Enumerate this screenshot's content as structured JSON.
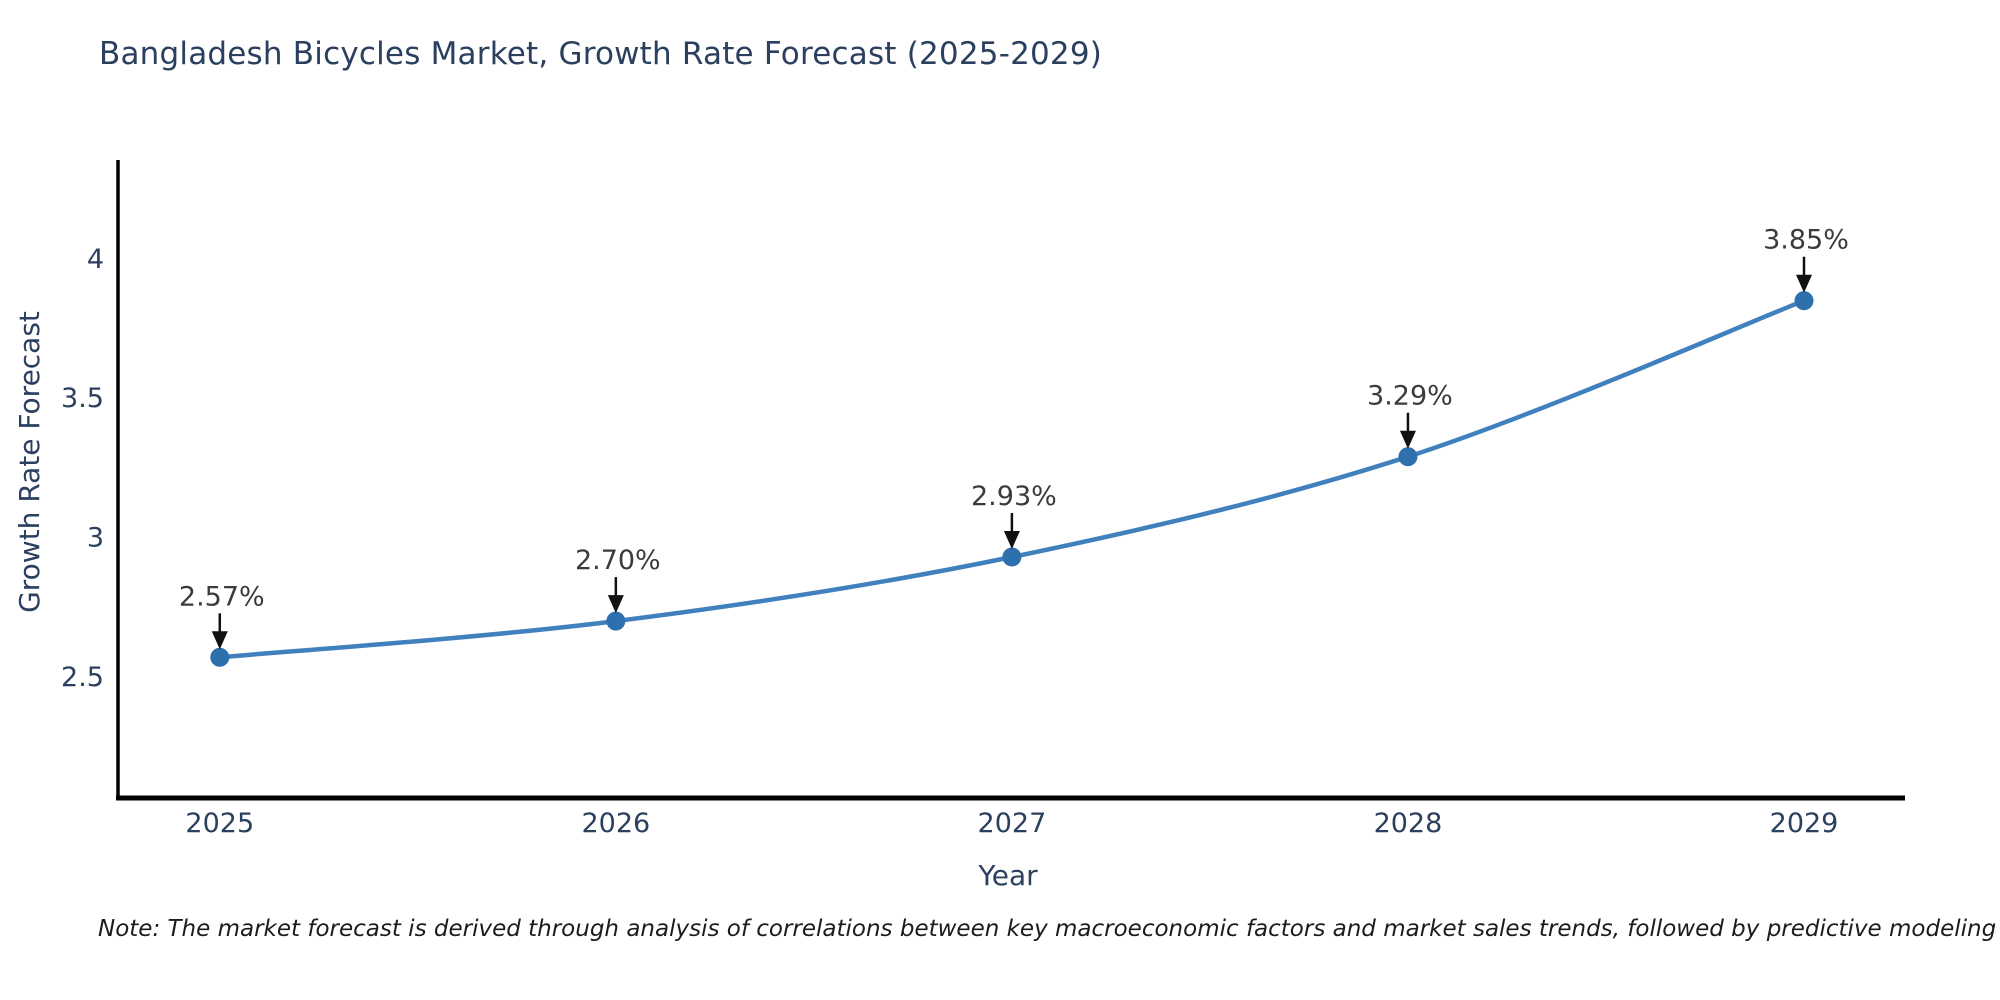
{
  "title": "Bangladesh Bicycles Market, Growth Rate Forecast (2025-2029)",
  "note": "Note: The market forecast is derived through analysis of correlations between key macroeconomic factors and market sales trends, followed by predictive modeling to project future sales",
  "chart_data": {
    "type": "line",
    "title": "Bangladesh Bicycles Market, Growth Rate Forecast (2025-2029)",
    "xlabel": "Year",
    "ylabel": "Growth Rate Forecast",
    "x": [
      2025,
      2026,
      2027,
      2028,
      2029
    ],
    "series": [
      {
        "name": "Growth Rate Forecast",
        "values": [
          2.57,
          2.7,
          2.93,
          3.29,
          3.85
        ]
      }
    ],
    "point_labels": [
      "2.57%",
      "2.70%",
      "2.93%",
      "3.29%",
      "3.85%"
    ],
    "xticks": [
      "2025",
      "2026",
      "2027",
      "2028",
      "2029"
    ],
    "yticks": [
      2.5,
      3,
      3.5,
      4
    ],
    "xlim": [
      2024.743,
      2029.255
    ],
    "ylim": [
      2.065,
      4.355
    ],
    "grid": false,
    "legend_position": "none",
    "line_color": "#4080bd",
    "marker_color": "#2e6fae",
    "arrow_color": "#111111",
    "axis_color": "#000000",
    "tick_color": "#2b3f5e",
    "annotation_color": "#3b3b3b",
    "background_color": "#ffffff"
  }
}
